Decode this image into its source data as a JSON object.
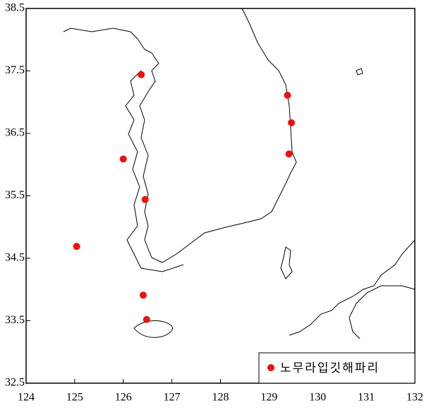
{
  "chart_data": {
    "type": "scatter",
    "series": [
      {
        "name": "노무라입깃해파리",
        "color": "#ee1111",
        "x": [
          126.37,
          129.38,
          129.46,
          129.41,
          126.0,
          126.45,
          125.04,
          126.41,
          126.48
        ],
        "values": [
          37.44,
          37.11,
          36.67,
          36.17,
          36.09,
          35.44,
          34.69,
          33.91,
          33.52
        ]
      }
    ],
    "xlim": [
      124,
      132
    ],
    "xticks": [
      124,
      125,
      126,
      127,
      128,
      129,
      130,
      131,
      132
    ],
    "ylim": [
      32.5,
      38.5
    ],
    "yticks": [
      32.5,
      33.5,
      34.5,
      35.5,
      36.5,
      37.5,
      38.5
    ],
    "legend": "lower right"
  }
}
